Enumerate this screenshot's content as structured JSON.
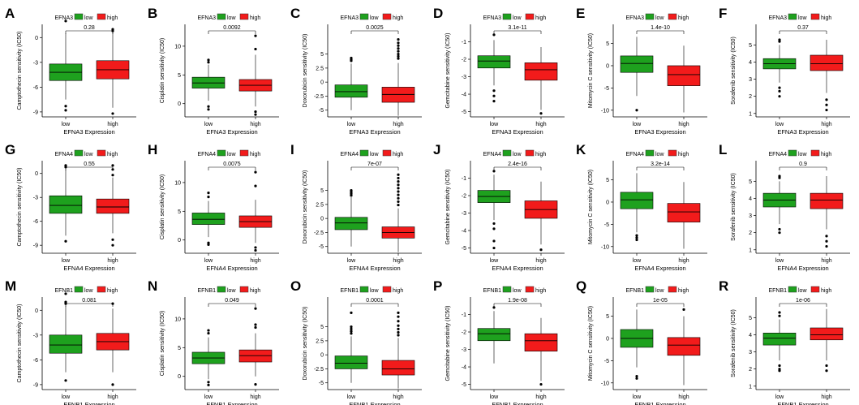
{
  "colors": {
    "low": "#1ea11e",
    "high": "#f21b1b",
    "axis": "#000000",
    "outlier": "#000000"
  },
  "legend_labels": {
    "low": "low",
    "high": "high"
  },
  "chart_data": [
    {
      "panel": "A",
      "type": "box",
      "gene": "EFNA3",
      "pvalue": "0.28",
      "xlabel": "EFNA3 Expression",
      "ylabel": "Camptothecin sensitivity (IC50)",
      "categories": [
        "low",
        "high"
      ],
      "yticks": [
        -9,
        -6,
        -3,
        0
      ],
      "ylim": [
        -9.6,
        1.6
      ],
      "boxes": [
        {
          "q1": -5.2,
          "median": -4.2,
          "q3": -3.2,
          "wlo": -7.5,
          "whi": 0.5,
          "outliers": [
            2.0,
            -8.3,
            -8.8
          ]
        },
        {
          "q1": -5.0,
          "median": -3.9,
          "q3": -2.8,
          "wlo": -8.5,
          "whi": 0.6,
          "outliers": [
            1.0,
            0.8,
            -9.2
          ]
        }
      ]
    },
    {
      "panel": "B",
      "type": "box",
      "gene": "EFNA3",
      "pvalue": "0.0092",
      "xlabel": "EFNA3 Expression",
      "ylabel": "Cisplatin sensitivity (IC50)",
      "categories": [
        "low",
        "high"
      ],
      "yticks": [
        0,
        5,
        10
      ],
      "ylim": [
        -2.3,
        13.8
      ],
      "boxes": [
        {
          "q1": 2.7,
          "median": 3.6,
          "q3": 4.6,
          "wlo": 0.5,
          "whi": 6.8,
          "outliers": [
            7.2,
            7.6,
            -0.5,
            -1.0
          ]
        },
        {
          "q1": 2.2,
          "median": 3.2,
          "q3": 4.2,
          "wlo": -0.5,
          "whi": 8.5,
          "outliers": [
            11.8,
            9.5,
            -1.4,
            -1.9
          ]
        }
      ]
    },
    {
      "panel": "C",
      "type": "box",
      "gene": "EFNA3",
      "pvalue": "0.0025",
      "xlabel": "EFNA3 Expression",
      "ylabel": "Doxorubicin sensitivity (IC50)",
      "categories": [
        "low",
        "high"
      ],
      "yticks": [
        -5,
        -2.5,
        0,
        2.5,
        5
      ],
      "ylim": [
        -6.2,
        10.3
      ],
      "boxes": [
        {
          "q1": -2.7,
          "median": -1.7,
          "q3": -0.5,
          "wlo": -5.0,
          "whi": 3.3,
          "outliers": [
            4.3,
            4.0,
            3.8
          ]
        },
        {
          "q1": -3.6,
          "median": -2.2,
          "q3": -0.9,
          "wlo": -6.0,
          "whi": 3.4,
          "outliers": [
            7.6,
            7.0,
            6.5,
            6.0,
            5.5,
            5.0,
            4.6,
            4.2
          ]
        }
      ]
    },
    {
      "panel": "D",
      "type": "box",
      "gene": "EFNA3",
      "pvalue": "3.1e-11",
      "xlabel": "EFNA3 Expression",
      "ylabel": "Gemcitabine sensitivity (IC50)",
      "categories": [
        "low",
        "high"
      ],
      "yticks": [
        -5,
        -4,
        -3,
        -2,
        -1
      ],
      "ylim": [
        -5.3,
        0.0
      ],
      "boxes": [
        {
          "q1": -2.5,
          "median": -2.1,
          "q3": -1.8,
          "wlo": -3.5,
          "whi": -0.9,
          "outliers": [
            -0.6,
            -3.8,
            -4.1,
            -4.4
          ]
        },
        {
          "q1": -3.2,
          "median": -2.6,
          "q3": -2.2,
          "wlo": -4.9,
          "whi": -1.3,
          "outliers": [
            -5.1
          ]
        }
      ]
    },
    {
      "panel": "E",
      "type": "box",
      "gene": "EFNA3",
      "pvalue": "1.4e-10",
      "xlabel": "EFNA3 Expression",
      "ylabel": "Mitomycin C sensitivity (IC50)",
      "categories": [
        "low",
        "high"
      ],
      "yticks": [
        -10,
        -5,
        0,
        5
      ],
      "ylim": [
        -11.5,
        9.3
      ],
      "boxes": [
        {
          "q1": -1.5,
          "median": 0.5,
          "q3": 2.2,
          "wlo": -6.8,
          "whi": 6.5,
          "outliers": [
            -10.0
          ]
        },
        {
          "q1": -4.5,
          "median": -2.0,
          "q3": 0.0,
          "wlo": -10.5,
          "whi": 4.5,
          "outliers": []
        }
      ]
    },
    {
      "panel": "F",
      "type": "box",
      "gene": "EFNA3",
      "pvalue": "0.37",
      "xlabel": "EFNA3 Expression",
      "ylabel": "Sorafenib sensitivity (IC50)",
      "categories": [
        "low",
        "high"
      ],
      "yticks": [
        1,
        2,
        3,
        4,
        5
      ],
      "ylim": [
        0.8,
        6.2
      ],
      "boxes": [
        {
          "q1": 3.6,
          "median": 3.9,
          "q3": 4.2,
          "wlo": 2.8,
          "whi": 5.0,
          "outliers": [
            5.3,
            5.2,
            2.5,
            2.3,
            2.0
          ]
        },
        {
          "q1": 3.5,
          "median": 3.9,
          "q3": 4.4,
          "wlo": 2.2,
          "whi": 5.3,
          "outliers": [
            1.8,
            1.5,
            1.2
          ]
        }
      ]
    },
    {
      "panel": "G",
      "type": "box",
      "gene": "EFNA4",
      "pvalue": "0.55",
      "xlabel": "EFNA4 Expression",
      "ylabel": "Camptothecin sensitivity (IC50)",
      "categories": [
        "low",
        "high"
      ],
      "yticks": [
        -9,
        -6,
        -3,
        0
      ],
      "ylim": [
        -10.0,
        1.6
      ],
      "boxes": [
        {
          "q1": -5.0,
          "median": -4.0,
          "q3": -2.8,
          "wlo": -7.8,
          "whi": 0.5,
          "outliers": [
            1.0,
            0.8,
            -8.5
          ]
        },
        {
          "q1": -5.0,
          "median": -4.2,
          "q3": -3.2,
          "wlo": -7.5,
          "whi": -0.5,
          "outliers": [
            1.0,
            0.5,
            -0.2,
            -8.3,
            -9.0
          ]
        }
      ]
    },
    {
      "panel": "H",
      "type": "box",
      "gene": "EFNA4",
      "pvalue": "0.0075",
      "xlabel": "EFNA4 Expression",
      "ylabel": "Cisplatin sensitivity (IC50)",
      "categories": [
        "low",
        "high"
      ],
      "yticks": [
        0,
        5,
        10
      ],
      "ylim": [
        -2.3,
        13.8
      ],
      "boxes": [
        {
          "q1": 2.7,
          "median": 3.6,
          "q3": 4.7,
          "wlo": 0.5,
          "whi": 6.8,
          "outliers": [
            8.2,
            7.5,
            -0.5,
            -0.8
          ]
        },
        {
          "q1": 2.2,
          "median": 3.2,
          "q3": 4.2,
          "wlo": -0.5,
          "whi": 7.0,
          "outliers": [
            11.8,
            9.4,
            -1.3,
            -1.8
          ]
        }
      ]
    },
    {
      "panel": "I",
      "type": "box",
      "gene": "EFNA4",
      "pvalue": "7e-07",
      "xlabel": "EFNA4 Expression",
      "ylabel": "Doxorubicin sensitivity (IC50)",
      "categories": [
        "low",
        "high"
      ],
      "yticks": [
        -5,
        -2.5,
        0,
        2.5,
        5
      ],
      "ylim": [
        -6.2,
        10.3
      ],
      "boxes": [
        {
          "q1": -2.0,
          "median": -0.8,
          "q3": 0.2,
          "wlo": -5.0,
          "whi": 3.8,
          "outliers": [
            5.0,
            4.7,
            4.4,
            4.1
          ]
        },
        {
          "q1": -3.5,
          "median": -2.5,
          "q3": -1.5,
          "wlo": -6.0,
          "whi": 1.8,
          "outliers": [
            7.8,
            7.2,
            6.6,
            6.0,
            5.4,
            4.8,
            4.2,
            3.6,
            3.0,
            2.4
          ]
        }
      ]
    },
    {
      "panel": "J",
      "type": "box",
      "gene": "EFNA4",
      "pvalue": "2.4e-16",
      "xlabel": "EFNA4 Expression",
      "ylabel": "Gemcitabine sensitivity (IC50)",
      "categories": [
        "low",
        "high"
      ],
      "yticks": [
        -5,
        -4,
        -3,
        -2,
        -1
      ],
      "ylim": [
        -5.3,
        0.0
      ],
      "boxes": [
        {
          "q1": -2.4,
          "median": -2.05,
          "q3": -1.7,
          "wlo": -3.4,
          "whi": -0.8,
          "outliers": [
            -0.6,
            -3.6,
            -3.9,
            -4.6,
            -5.0
          ]
        },
        {
          "q1": -3.3,
          "median": -2.8,
          "q3": -2.3,
          "wlo": -4.8,
          "whi": -1.2,
          "outliers": [
            -5.1
          ]
        }
      ]
    },
    {
      "panel": "K",
      "type": "box",
      "gene": "EFNA4",
      "pvalue": "3.2e-14",
      "xlabel": "EFNA4 Expression",
      "ylabel": "Mitomycin C sensitivity (IC50)",
      "categories": [
        "low",
        "high"
      ],
      "yticks": [
        -10,
        -5,
        0,
        5
      ],
      "ylim": [
        -11.5,
        9.3
      ],
      "boxes": [
        {
          "q1": -1.5,
          "median": 0.5,
          "q3": 2.2,
          "wlo": -6.8,
          "whi": 6.5,
          "outliers": [
            -7.5,
            -8.0,
            -8.5
          ]
        },
        {
          "q1": -4.5,
          "median": -2.2,
          "q3": -0.3,
          "wlo": -10.5,
          "whi": 4.5,
          "outliers": []
        }
      ]
    },
    {
      "panel": "L",
      "type": "box",
      "gene": "EFNA4",
      "pvalue": "0.9",
      "xlabel": "EFNA4 Expression",
      "ylabel": "Sorafenib sensitivity (IC50)",
      "categories": [
        "low",
        "high"
      ],
      "yticks": [
        1,
        2,
        3,
        4,
        5
      ],
      "ylim": [
        0.8,
        6.2
      ],
      "boxes": [
        {
          "q1": 3.5,
          "median": 3.9,
          "q3": 4.3,
          "wlo": 2.5,
          "whi": 5.0,
          "outliers": [
            5.3,
            5.2,
            2.2,
            2.0
          ]
        },
        {
          "q1": 3.4,
          "median": 3.9,
          "q3": 4.3,
          "wlo": 2.2,
          "whi": 5.3,
          "outliers": [
            1.8,
            1.5,
            1.2
          ]
        }
      ]
    },
    {
      "panel": "M",
      "type": "box",
      "gene": "EFNB1",
      "pvalue": "0.081",
      "xlabel": "EFNB1 Expression",
      "ylabel": "Camptothecin sensitivity (IC50)",
      "categories": [
        "low",
        "high"
      ],
      "yticks": [
        -9,
        -6,
        -3,
        0
      ],
      "ylim": [
        -9.6,
        1.6
      ],
      "boxes": [
        {
          "q1": -5.2,
          "median": -4.2,
          "q3": -3.0,
          "wlo": -7.5,
          "whi": 0.5,
          "outliers": [
            2.0,
            1.0,
            0.8,
            -8.5
          ]
        },
        {
          "q1": -4.8,
          "median": -3.8,
          "q3": -2.8,
          "wlo": -7.5,
          "whi": 0.2,
          "outliers": [
            0.8,
            -9.0
          ]
        }
      ]
    },
    {
      "panel": "N",
      "type": "box",
      "gene": "EFNB1",
      "pvalue": "0.049",
      "xlabel": "EFNB1 Expression",
      "ylabel": "Cisplatin sensitivity (IC50)",
      "categories": [
        "low",
        "high"
      ],
      "yticks": [
        0,
        5,
        10
      ],
      "ylim": [
        -2.3,
        13.8
      ],
      "boxes": [
        {
          "q1": 2.2,
          "median": 3.2,
          "q3": 4.2,
          "wlo": -0.5,
          "whi": 6.8,
          "outliers": [
            8.0,
            7.5,
            -1.0,
            -1.5
          ]
        },
        {
          "q1": 2.5,
          "median": 3.6,
          "q3": 4.6,
          "wlo": 0.0,
          "whi": 7.5,
          "outliers": [
            11.8,
            9.0,
            8.5,
            -1.4
          ]
        }
      ]
    },
    {
      "panel": "O",
      "type": "box",
      "gene": "EFNB1",
      "pvalue": "0.0001",
      "xlabel": "EFNB1 Expression",
      "ylabel": "Doxorubicin sensitivity (IC50)",
      "categories": [
        "low",
        "high"
      ],
      "yticks": [
        -5,
        -2.5,
        0,
        2.5,
        5
      ],
      "ylim": [
        -6.2,
        10.3
      ],
      "boxes": [
        {
          "q1": -2.5,
          "median": -1.5,
          "q3": -0.2,
          "wlo": -5.0,
          "whi": 3.3,
          "outliers": [
            7.5,
            5.0,
            4.6,
            4.2,
            3.8
          ]
        },
        {
          "q1": -3.6,
          "median": -2.5,
          "q3": -1.0,
          "wlo": -6.0,
          "whi": 3.0,
          "outliers": [
            7.5,
            6.8,
            6.0,
            5.2,
            4.6,
            4.0,
            3.5
          ]
        }
      ]
    },
    {
      "panel": "P",
      "type": "box",
      "gene": "EFNB1",
      "pvalue": "1.9e-08",
      "xlabel": "EFNB1 Expression",
      "ylabel": "Gemcitabine sensitivity (IC50)",
      "categories": [
        "low",
        "high"
      ],
      "yticks": [
        -5,
        -4,
        -3,
        -2,
        -1
      ],
      "ylim": [
        -5.3,
        0.0
      ],
      "boxes": [
        {
          "q1": -2.5,
          "median": -2.1,
          "q3": -1.8,
          "wlo": -3.8,
          "whi": -0.8,
          "outliers": [
            -0.6
          ]
        },
        {
          "q1": -3.1,
          "median": -2.5,
          "q3": -2.1,
          "wlo": -4.8,
          "whi": -1.2,
          "outliers": [
            -5.0
          ]
        }
      ]
    },
    {
      "panel": "Q",
      "type": "box",
      "gene": "EFNB1",
      "pvalue": "1e-05",
      "xlabel": "EFNB1 Expression",
      "ylabel": "Mitomycin C sensitivity (IC50)",
      "categories": [
        "low",
        "high"
      ],
      "yticks": [
        -10,
        -5,
        0,
        5
      ],
      "ylim": [
        -11.5,
        9.3
      ],
      "boxes": [
        {
          "q1": -2.0,
          "median": 0.0,
          "q3": 2.0,
          "wlo": -6.5,
          "whi": 6.5,
          "outliers": [
            -8.5,
            -9.0
          ]
        },
        {
          "q1": -3.8,
          "median": -1.5,
          "q3": 0.2,
          "wlo": -10.5,
          "whi": 5.0,
          "outliers": [
            6.5
          ]
        }
      ]
    },
    {
      "panel": "R",
      "type": "box",
      "gene": "EFNB1",
      "pvalue": "1e-06",
      "xlabel": "EFNB1 Expression",
      "ylabel": "Sorafenib sensitivity (IC50)",
      "categories": [
        "low",
        "high"
      ],
      "yticks": [
        1,
        2,
        3,
        4,
        5
      ],
      "ylim": [
        0.8,
        6.2
      ],
      "boxes": [
        {
          "q1": 3.4,
          "median": 3.8,
          "q3": 4.1,
          "wlo": 2.5,
          "whi": 4.9,
          "outliers": [
            5.3,
            5.1,
            2.2,
            2.0,
            1.9
          ]
        },
        {
          "q1": 3.7,
          "median": 4.0,
          "q3": 4.4,
          "wlo": 2.5,
          "whi": 5.5,
          "outliers": [
            2.2,
            1.9
          ]
        }
      ]
    }
  ]
}
